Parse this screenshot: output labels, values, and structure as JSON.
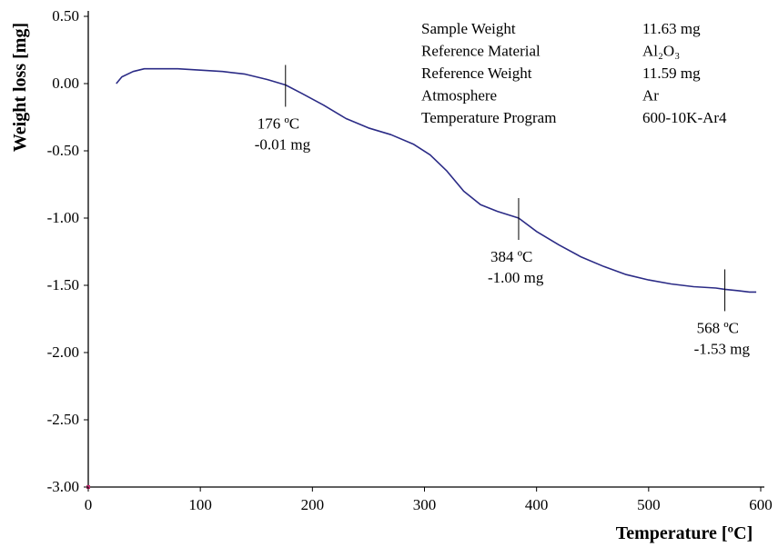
{
  "chart_data": {
    "type": "line",
    "xlabel": "Temperature [ºC]",
    "ylabel": "Weight loss [mg]",
    "xlim": [
      0,
      600
    ],
    "ylim": [
      -3.0,
      0.5
    ],
    "x_ticks": [
      0,
      100,
      200,
      300,
      400,
      500,
      600
    ],
    "x_tick_labels": [
      "0",
      "100",
      "200",
      "300",
      "400",
      "500",
      "600"
    ],
    "y_ticks": [
      0.5,
      0.0,
      -0.5,
      -1.0,
      -1.5,
      -2.0,
      -2.5,
      -3.0
    ],
    "y_tick_labels": [
      "0.50",
      "0.00",
      "-0.50",
      "-1.00",
      "-1.50",
      "-2.00",
      "-2.50",
      "-3.00"
    ],
    "grid": false,
    "line_color": "#2b2b86",
    "series": [
      {
        "x": [
          25,
          30,
          40,
          50,
          60,
          80,
          100,
          120,
          140,
          150,
          160,
          176,
          190,
          210,
          230,
          250,
          270,
          290,
          305,
          320,
          335,
          350,
          365,
          384,
          400,
          420,
          440,
          460,
          480,
          500,
          520,
          540,
          560,
          568,
          580,
          590,
          596
        ],
        "y": [
          0.0,
          0.05,
          0.09,
          0.11,
          0.11,
          0.11,
          0.1,
          0.09,
          0.07,
          0.05,
          0.03,
          -0.01,
          -0.07,
          -0.16,
          -0.26,
          -0.33,
          -0.38,
          -0.45,
          -0.53,
          -0.65,
          -0.8,
          -0.9,
          -0.95,
          -1.0,
          -1.1,
          -1.2,
          -1.29,
          -1.36,
          -1.42,
          -1.46,
          -1.49,
          -1.51,
          -1.52,
          -1.53,
          -1.54,
          -1.55,
          -1.55
        ]
      }
    ],
    "annotations": [
      {
        "x": 176,
        "y": -0.01,
        "label_temp": "176 ºC",
        "label_mass": "-0.01 mg"
      },
      {
        "x": 384,
        "y": -1.0,
        "label_temp": "384 ºC",
        "label_mass": "-1.00 mg"
      },
      {
        "x": 568,
        "y": -1.53,
        "label_temp": "568 ºC",
        "label_mass": "-1.53 mg"
      }
    ],
    "info_table": [
      {
        "label": "Sample Weight",
        "value": "11.63 mg"
      },
      {
        "label": "Reference Material",
        "value": "Al₂O₃"
      },
      {
        "label": "Reference Weight",
        "value": "11.59 mg"
      },
      {
        "label": "Atmosphere",
        "value": "Ar"
      },
      {
        "label": "Temperature Program",
        "value": "600-10K-Ar4"
      }
    ]
  }
}
